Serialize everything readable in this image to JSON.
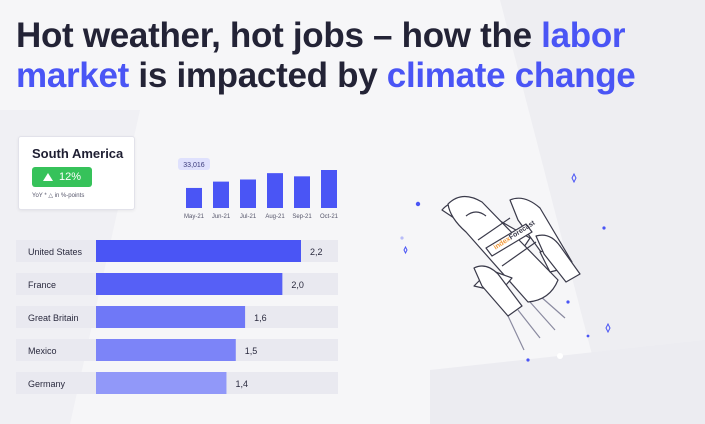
{
  "headline": {
    "line1_plain": "Hot weather, hot jobs – how the ",
    "line1_accent": "labor",
    "line2_accent": "market",
    "line2_plain": " is impacted by ",
    "line2_accent2": "climate change"
  },
  "region_card": {
    "name": "South America",
    "growth": "12%",
    "note": "YoY * △ in %-points"
  },
  "colors": {
    "accent": "#4a55f5",
    "growth_green": "#36c25a",
    "track": "#e9e9f0",
    "bar_shades": [
      "#4a55f5",
      "#5660f6",
      "#6f78f7",
      "#7c84f8",
      "#9198f9"
    ]
  },
  "chart_data": [
    {
      "type": "bar",
      "categories": [
        "May-21",
        "Jun-21",
        "Jul-21",
        "Aug-21",
        "Sep-21",
        "Oct-21"
      ],
      "values": [
        19000,
        25000,
        27000,
        33016,
        30000,
        36000
      ],
      "annotation": "33,016",
      "ylim": [
        0,
        36000
      ]
    },
    {
      "type": "bar",
      "orientation": "horizontal",
      "categories": [
        "United States",
        "France",
        "Great Britain",
        "Mexico",
        "Germany"
      ],
      "values": [
        2.2,
        2.0,
        1.6,
        1.5,
        1.4
      ],
      "value_labels": [
        "2,2",
        "2,0",
        "1,6",
        "1,5",
        "1,4"
      ],
      "xlim": [
        0,
        2.2
      ]
    }
  ],
  "rocket": {
    "label_prefix": "index",
    "label_brand": "Forecast"
  }
}
